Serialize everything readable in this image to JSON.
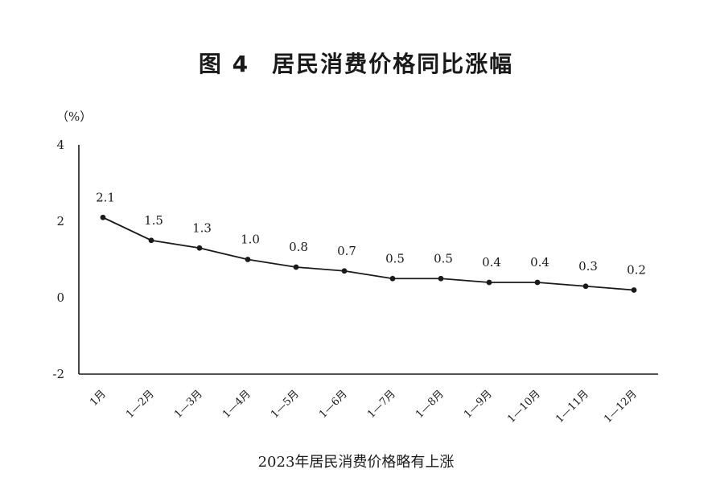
{
  "title": {
    "figure_number": "图 4",
    "text": "居民消费价格同比涨幅"
  },
  "caption": "2023年居民消费价格略有上涨",
  "colors": {
    "line": "#1a1a1a",
    "axis": "#1a1a1a",
    "text": "#1a1a1a"
  },
  "chart_data": {
    "type": "line",
    "title": "居民消费价格同比涨幅",
    "unit_label": "（%）",
    "xlabel": "",
    "ylabel": "",
    "categories": [
      "1月",
      "1—2月",
      "1—3月",
      "1—4月",
      "1—5月",
      "1—6月",
      "1—7月",
      "1—8月",
      "1—9月",
      "1—10月",
      "1—11月",
      "1—12月"
    ],
    "values": [
      2.1,
      1.5,
      1.3,
      1.0,
      0.8,
      0.7,
      0.5,
      0.5,
      0.4,
      0.4,
      0.3,
      0.2
    ],
    "data_labels": [
      "2.1",
      "1.5",
      "1.3",
      "1.0",
      "0.8",
      "0.7",
      "0.5",
      "0.5",
      "0.4",
      "0.4",
      "0.3",
      "0.2"
    ],
    "ylim": [
      -2,
      4
    ],
    "yticks": [
      -2,
      0,
      2,
      4
    ],
    "ytick_labels": [
      "-2",
      "0",
      "2",
      "4"
    ],
    "grid": false,
    "legend": "none",
    "markers": true
  }
}
